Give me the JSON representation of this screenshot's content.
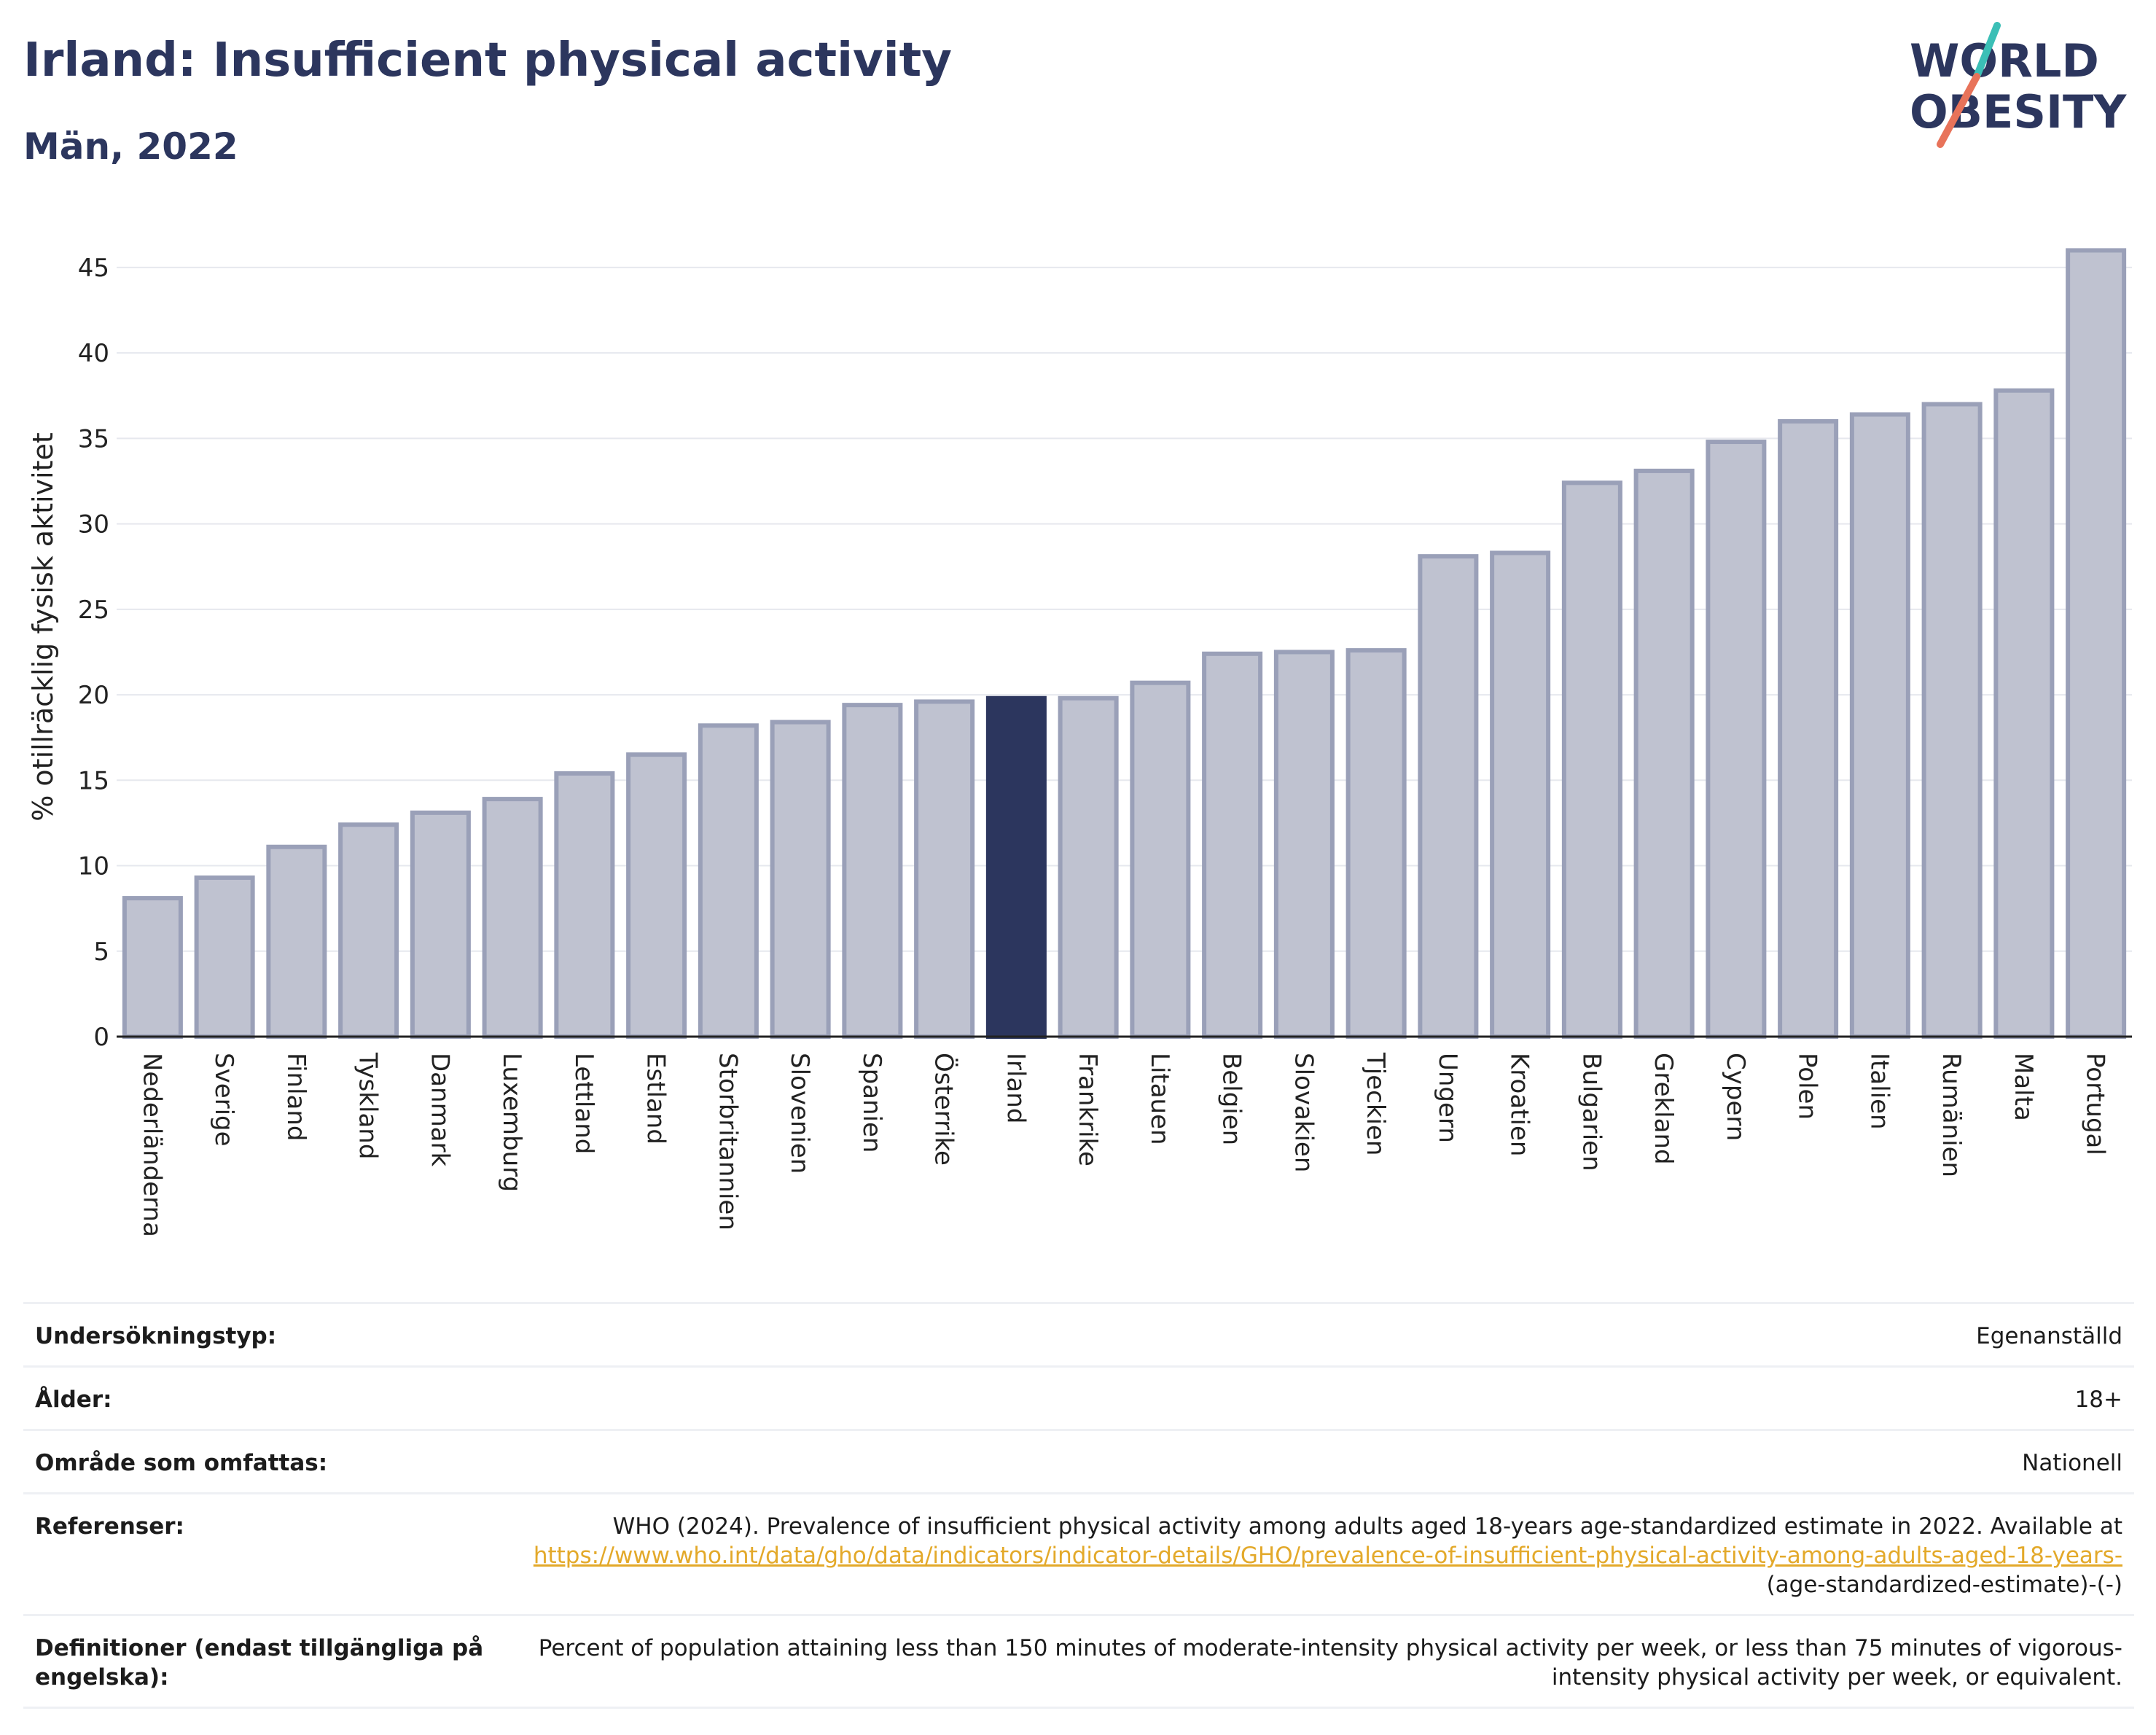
{
  "header": {
    "title": "Irland: Insufficient physical activity",
    "subtitle": "Män, 2022"
  },
  "logo": {
    "line1": "WORLD",
    "line2": "OBESITY",
    "colors": {
      "text": "#2c365e",
      "slash_top": "#3bbfb6",
      "slash_bottom": "#e8735a"
    }
  },
  "chart_data": {
    "type": "bar",
    "ylabel": "% otillräcklig fysisk aktivitet",
    "ylim": [
      0,
      47
    ],
    "yticks": [
      0,
      5,
      10,
      15,
      20,
      25,
      30,
      35,
      40,
      45
    ],
    "grid": true,
    "highlight": "Irland",
    "colors": {
      "bar": "#bfc2d0",
      "bar_edge": "#9aa0b8",
      "highlight": "#2c365e"
    },
    "categories": [
      "Nederländerna",
      "Sverige",
      "Finland",
      "Tyskland",
      "Danmark",
      "Luxemburg",
      "Lettland",
      "Estland",
      "Storbritannien",
      "Slovenien",
      "Spanien",
      "Österrike",
      "Irland",
      "Frankrike",
      "Litauen",
      "Belgien",
      "Slovakien",
      "Tjeckien",
      "Ungern",
      "Kroatien",
      "Bulgarien",
      "Grekland",
      "Cypern",
      "Polen",
      "Italien",
      "Rumänien",
      "Malta",
      "Portugal"
    ],
    "values": [
      8.1,
      9.3,
      11.1,
      12.4,
      13.1,
      13.9,
      15.4,
      16.5,
      18.2,
      18.4,
      19.4,
      19.6,
      19.8,
      19.8,
      20.7,
      22.4,
      22.5,
      22.6,
      28.1,
      28.3,
      32.4,
      33.1,
      34.8,
      36.0,
      36.4,
      37.0,
      37.8,
      46.0
    ]
  },
  "meta": {
    "rows": [
      {
        "key": "Undersökningstyp:",
        "value": "Egenanställd"
      },
      {
        "key": "Ålder:",
        "value": "18+"
      },
      {
        "key": "Område som omfattas:",
        "value": "Nationell"
      }
    ],
    "references": {
      "key": "Referenser:",
      "text": "WHO (2024). Prevalence of insufficient physical activity among adults aged 18-years age-standardized estimate in 2022. Available at",
      "link": "https://www.who.int/data/gho/data/indicators/indicator-details/GHO/prevalence-of-insufficient-physical-activity-among-adults-aged-18-years-",
      "suffix": "(age-standardized-estimate)-(-)"
    },
    "definitions": {
      "key": "Definitioner (endast tillgängliga på engelska):",
      "value": "Percent of population attaining less than 150 minutes of moderate-intensity physical activity per week, or less than 75 minutes of vigorous-intensity physical activity per week, or equivalent."
    }
  }
}
